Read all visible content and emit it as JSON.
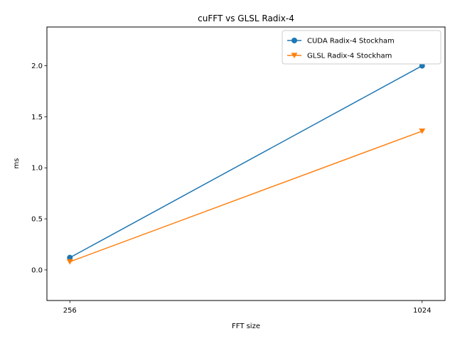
{
  "chart_data": {
    "type": "line",
    "title": "cuFFT vs GLSL Radix-4",
    "xlabel": "FFT size",
    "ylabel": "ms",
    "categories": [
      "256",
      "1024"
    ],
    "x": [
      256,
      1024
    ],
    "xlim": [
      206,
      1074
    ],
    "ylim": [
      -0.3,
      2.38
    ],
    "yticks": [
      0.0,
      0.5,
      1.0,
      1.5,
      2.0
    ],
    "ytick_labels": [
      "0.0",
      "0.5",
      "1.0",
      "1.5",
      "2.0"
    ],
    "grid": false,
    "legend_position": "top-right",
    "series": [
      {
        "name": "CUDA Radix-4 Stockham",
        "values": [
          0.12,
          2.0
        ],
        "color": "#1f77b4",
        "marker": "circle"
      },
      {
        "name": "GLSL Radix-4 Stockham",
        "values": [
          0.08,
          1.36
        ],
        "color": "#ff7f0e",
        "marker": "triangle-down"
      }
    ]
  }
}
